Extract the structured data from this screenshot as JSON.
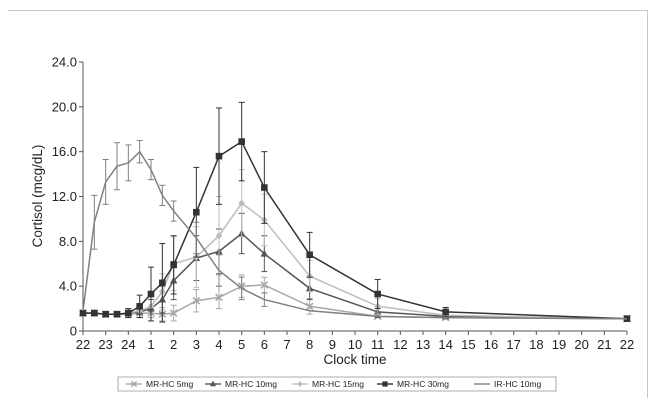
{
  "chart_data": {
    "type": "line",
    "title": "",
    "xlabel": "Clock time",
    "ylabel": "Cortisol (mcg/dL)",
    "ylim": [
      0,
      24
    ],
    "yticks": [
      "0",
      "4.0",
      "8.0",
      "12.0",
      "16.0",
      "20.0",
      "24.0"
    ],
    "xtick_labels": [
      "22",
      "23",
      "24",
      "1",
      "2",
      "3",
      "4",
      "5",
      "6",
      "7",
      "8",
      "9",
      "10",
      "11",
      "12",
      "13",
      "14",
      "15",
      "16",
      "17",
      "18",
      "19",
      "20",
      "21",
      "22"
    ],
    "x_unit": "hours elapsed since 22:00 (day 1)",
    "xlim": [
      0,
      24
    ],
    "grid": false,
    "legend_position": "bottom",
    "series": [
      {
        "name": "MR-HC 5mg",
        "color": "#a8a8a8",
        "marker": "x",
        "x": [
          0,
          0.5,
          1,
          1.5,
          2,
          2.5,
          3,
          3.5,
          4,
          5,
          6,
          7,
          8,
          10,
          13,
          16,
          24
        ],
        "y": [
          1.6,
          1.6,
          1.5,
          1.5,
          1.5,
          1.6,
          1.6,
          1.5,
          1.6,
          2.7,
          3.0,
          4.0,
          4.1,
          2.2,
          1.3,
          1.2,
          1.1
        ],
        "err": [
          0.3,
          0.3,
          0.3,
          0.3,
          0.3,
          0.4,
          0.4,
          0.6,
          0.7,
          1.0,
          1.0,
          1.0,
          0.7,
          0.7,
          0.3,
          0.2,
          0.2
        ]
      },
      {
        "name": "MR-HC 10mg",
        "color": "#555555",
        "marker": "triangle",
        "x": [
          0,
          0.5,
          1,
          1.5,
          2,
          2.5,
          3,
          3.5,
          4,
          5,
          6,
          7,
          8,
          10,
          13,
          16,
          24
        ],
        "y": [
          1.6,
          1.6,
          1.5,
          1.5,
          1.6,
          1.7,
          2.0,
          2.8,
          4.5,
          6.5,
          7.1,
          8.7,
          6.9,
          3.8,
          1.7,
          1.3,
          1.1
        ],
        "err": [
          0.3,
          0.3,
          0.3,
          0.3,
          0.4,
          0.5,
          0.8,
          1.2,
          1.7,
          2.0,
          2.0,
          1.8,
          1.6,
          1.0,
          0.5,
          0.3,
          0.2
        ]
      },
      {
        "name": "MR-HC 15mg",
        "color": "#bdbdbd",
        "marker": "diamond",
        "x": [
          0,
          0.5,
          1,
          1.5,
          2,
          2.5,
          3,
          3.5,
          4,
          5,
          6,
          7,
          8,
          10,
          13,
          16,
          24
        ],
        "y": [
          1.6,
          1.6,
          1.5,
          1.5,
          1.6,
          1.8,
          2.2,
          3.5,
          6.0,
          6.6,
          8.5,
          11.4,
          9.9,
          4.9,
          2.2,
          1.4,
          1.1
        ],
        "err": [
          0.3,
          0.3,
          0.3,
          0.3,
          0.4,
          0.6,
          1.0,
          1.6,
          2.4,
          2.7,
          3.5,
          3.0,
          2.3,
          1.4,
          0.7,
          0.3,
          0.2
        ]
      },
      {
        "name": "MR-HC 30mg",
        "color": "#333333",
        "marker": "square",
        "x": [
          0,
          0.5,
          1,
          1.5,
          2,
          2.5,
          3,
          3.5,
          4,
          5,
          6,
          7,
          8,
          10,
          13,
          16,
          24
        ],
        "y": [
          1.6,
          1.6,
          1.5,
          1.5,
          1.6,
          2.2,
          3.3,
          4.3,
          5.9,
          10.6,
          15.6,
          16.9,
          12.8,
          6.8,
          3.3,
          1.7,
          1.1
        ],
        "err": [
          0.3,
          0.3,
          0.3,
          0.3,
          0.4,
          1.0,
          2.4,
          3.5,
          2.6,
          4.0,
          4.3,
          3.5,
          3.2,
          2.0,
          1.3,
          0.4,
          0.2
        ]
      },
      {
        "name": "IR-HC 10mg",
        "color": "#808080",
        "marker": "none",
        "x": [
          0,
          0.5,
          1,
          1.5,
          2,
          2.5,
          3,
          3.5,
          4,
          5,
          6,
          7,
          8,
          10,
          13,
          16,
          24
        ],
        "y": [
          1.8,
          9.7,
          13.3,
          14.7,
          15.0,
          16.0,
          14.4,
          12.1,
          10.7,
          8.3,
          5.4,
          3.8,
          2.8,
          1.8,
          1.3,
          1.2,
          1.1
        ],
        "err": [
          0.3,
          2.4,
          2.0,
          2.1,
          1.6,
          1.0,
          0.9,
          0.9,
          0.9,
          1.4,
          1.4,
          1.0,
          0.6,
          0.3,
          0.2,
          0.2,
          0.2
        ]
      }
    ]
  }
}
